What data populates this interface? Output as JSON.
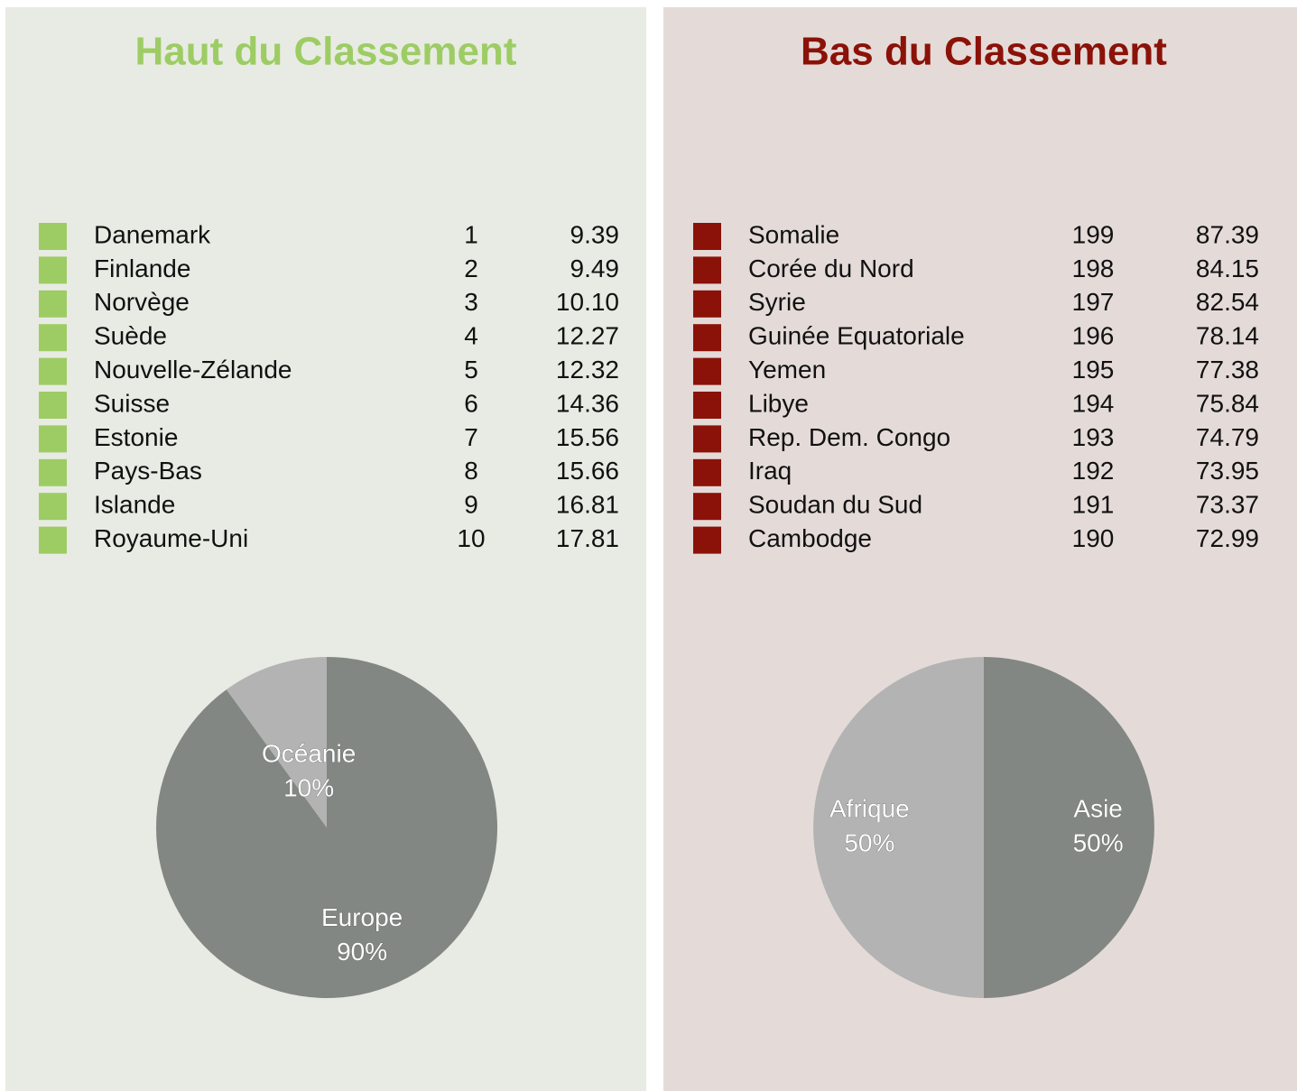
{
  "panels": [
    {
      "title": "Haut du Classement",
      "color": "#9dcc64",
      "rows": [
        [
          "Danemark",
          1,
          "9.39"
        ],
        [
          "Finlande",
          2,
          "9.49"
        ],
        [
          "Norvège",
          3,
          "10.10"
        ],
        [
          "Suède",
          4,
          "12.27"
        ],
        [
          "Nouvelle-Zélande",
          5,
          "12.32"
        ],
        [
          "Suisse",
          6,
          "14.36"
        ],
        [
          "Estonie",
          7,
          "15.56"
        ],
        [
          "Pays-Bas",
          8,
          "15.66"
        ],
        [
          "Islande",
          9,
          "16.81"
        ],
        [
          "Royaume-Uni",
          10,
          "17.81"
        ]
      ]
    },
    {
      "title": "Bas du Classement",
      "color": "#8b1208",
      "rows": [
        [
          "Somalie",
          199,
          "87.39"
        ],
        [
          "Corée du Nord",
          198,
          "84.15"
        ],
        [
          "Syrie",
          197,
          "82.54"
        ],
        [
          "Guinée Equatoriale",
          196,
          "78.14"
        ],
        [
          "Yemen",
          195,
          "77.38"
        ],
        [
          "Libye",
          194,
          "75.84"
        ],
        [
          "Rep. Dem. Congo",
          193,
          "74.79"
        ],
        [
          "Iraq",
          192,
          "73.95"
        ],
        [
          "Soudan du Sud",
          191,
          "73.37"
        ],
        [
          "Cambodge",
          190,
          "72.99"
        ]
      ]
    }
  ],
  "chart_data": [
    {
      "type": "pie",
      "categories": [
        "Europe",
        "Océanie"
      ],
      "values": [
        90,
        10
      ],
      "value_labels": [
        "90%",
        "10%"
      ],
      "colors": [
        "#828784",
        "#b3b3b3"
      ]
    },
    {
      "type": "pie",
      "categories": [
        "Asie",
        "Afrique"
      ],
      "values": [
        50,
        50
      ],
      "value_labels": [
        "50%",
        "50%"
      ],
      "colors": [
        "#828784",
        "#b3b3b3"
      ]
    }
  ]
}
